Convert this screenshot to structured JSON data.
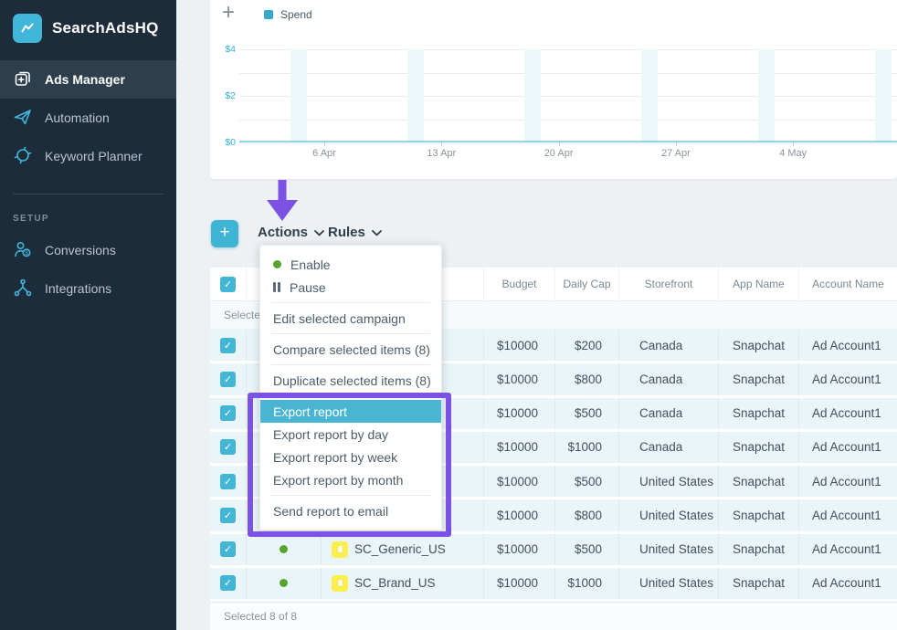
{
  "colors": {
    "accent_teal": "#41b6d9",
    "dropdown_highlight": "#4ab5d1",
    "annotation_purple": "#7b52e3",
    "status_green": "#55a42b",
    "snapchat_yellow": "#fcee4b",
    "sidebar_bg": "#1d2c3a"
  },
  "sidebar": {
    "logo_text": "SearchAdsHQ",
    "items": [
      {
        "label": "Ads Manager",
        "icon": "ads-manager-icon",
        "active": true
      },
      {
        "label": "Automation",
        "icon": "automation-icon",
        "active": false
      },
      {
        "label": "Keyword Planner",
        "icon": "keyword-planner-icon",
        "active": false
      }
    ],
    "section_label": "SETUP",
    "setup_items": [
      {
        "label": "Conversions",
        "icon": "conversions-icon",
        "active": false
      },
      {
        "label": "Integrations",
        "icon": "integrations-icon",
        "active": false
      }
    ]
  },
  "chart_data": {
    "type": "line",
    "title": "",
    "series": [
      {
        "name": "Spend",
        "values": [
          0,
          0,
          0,
          0,
          0
        ]
      }
    ],
    "x_ticks": [
      "6 Apr",
      "13 Apr",
      "20 Apr",
      "27 Apr",
      "4 May"
    ],
    "y_ticks": [
      "$4",
      "$2",
      "$0"
    ],
    "ylim": [
      0,
      4
    ],
    "grid": true,
    "legend_position": "top-left",
    "line_color": "#8fd8e9"
  },
  "toolbar": {
    "add_label": "+",
    "actions_label": "Actions",
    "rules_label": "Rules"
  },
  "dropdown": {
    "items": [
      {
        "label": "Enable",
        "icon": "enable-dot"
      },
      {
        "label": "Pause",
        "icon": "pause",
        "divider_after": true
      },
      {
        "label": "Edit selected campaign",
        "divider_after": true
      },
      {
        "label": "Compare selected items (8)",
        "divider_after": true
      },
      {
        "label": "Duplicate selected items (8)",
        "divider_after": true
      },
      {
        "label": "Export report",
        "highlighted": true
      },
      {
        "label": "Export report by day"
      },
      {
        "label": "Export report by week"
      },
      {
        "label": "Export report by month",
        "divider_after": true
      },
      {
        "label": "Send report to email"
      }
    ]
  },
  "table": {
    "headers": [
      "Budget",
      "Daily Cap",
      "Storefront",
      "App Name",
      "Account Name"
    ],
    "summary_label": "Selected",
    "rows": [
      {
        "checked": true,
        "status": null,
        "name": "",
        "budget": "$10000",
        "daily_cap": "$200",
        "storefront": "Canada",
        "app_name": "Snapchat",
        "account_name": "Ad Account1"
      },
      {
        "checked": true,
        "status": null,
        "name": "",
        "budget": "$10000",
        "daily_cap": "$800",
        "storefront": "Canada",
        "app_name": "Snapchat",
        "account_name": "Ad Account1"
      },
      {
        "checked": true,
        "status": null,
        "name": "",
        "budget": "$10000",
        "daily_cap": "$500",
        "storefront": "Canada",
        "app_name": "Snapchat",
        "account_name": "Ad Account1"
      },
      {
        "checked": true,
        "status": null,
        "name": "",
        "budget": "$10000",
        "daily_cap": "$1000",
        "storefront": "Canada",
        "app_name": "Snapchat",
        "account_name": "Ad Account1"
      },
      {
        "checked": true,
        "status": null,
        "name": "",
        "budget": "$10000",
        "daily_cap": "$500",
        "storefront": "United States",
        "app_name": "Snapchat",
        "account_name": "Ad Account1"
      },
      {
        "checked": true,
        "status": null,
        "name": "",
        "budget": "$10000",
        "daily_cap": "$800",
        "storefront": "United States",
        "app_name": "Snapchat",
        "account_name": "Ad Account1"
      },
      {
        "checked": true,
        "status": "enabled",
        "name": "SC_Generic_US",
        "budget": "$10000",
        "daily_cap": "$500",
        "storefront": "United States",
        "app_name": "Snapchat",
        "account_name": "Ad Account1"
      },
      {
        "checked": true,
        "status": "enabled",
        "name": "SC_Brand_US",
        "budget": "$10000",
        "daily_cap": "$1000",
        "storefront": "United States",
        "app_name": "Snapchat",
        "account_name": "Ad Account1"
      }
    ],
    "footer": "Selected 8 of 8"
  }
}
